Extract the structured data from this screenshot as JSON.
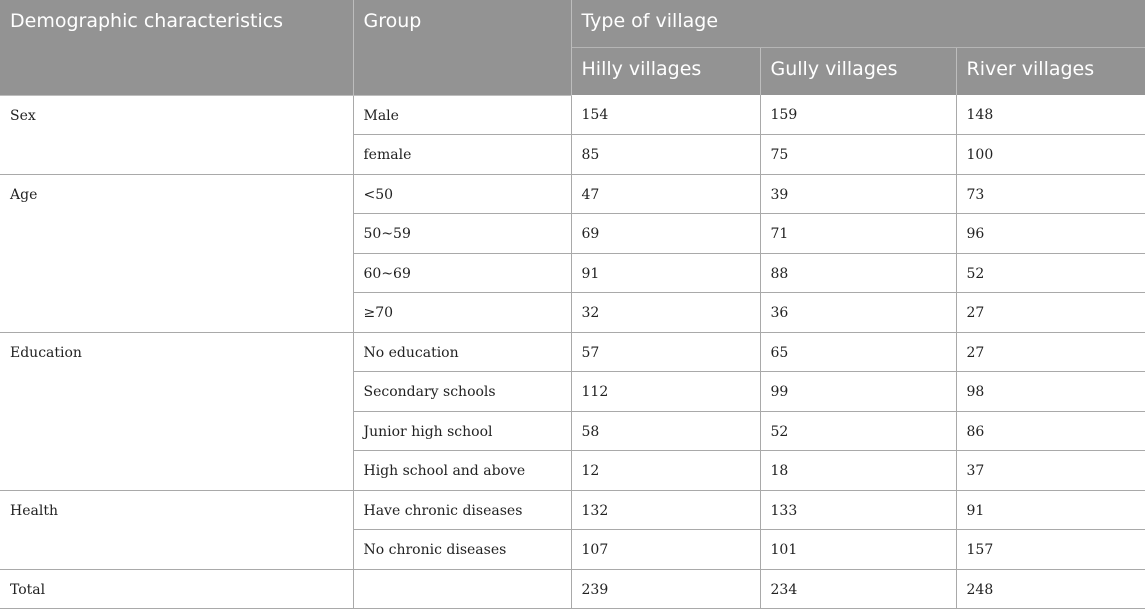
{
  "header": {
    "col1": "Demographic characteristics",
    "col2": "Group",
    "span": "Type of village",
    "villages": [
      "Hilly villages",
      "Gully villages",
      "River villages"
    ]
  },
  "rows": [
    {
      "category": "Sex",
      "group": "Male",
      "values": [
        "154",
        "159",
        "148"
      ]
    },
    {
      "category": "",
      "group": "female",
      "values": [
        "85",
        "75",
        "100"
      ]
    },
    {
      "category": "Age",
      "group": "<50",
      "values": [
        "47",
        "39",
        "73"
      ]
    },
    {
      "category": "",
      "group": "50~59",
      "values": [
        "69",
        "71",
        "96"
      ]
    },
    {
      "category": "",
      "group": "60~69",
      "values": [
        "91",
        "88",
        "52"
      ]
    },
    {
      "category": "",
      "group": "≥70",
      "values": [
        "32",
        "36",
        "27"
      ]
    },
    {
      "category": "Education",
      "group": "No education",
      "values": [
        "57",
        "65",
        "27"
      ]
    },
    {
      "category": "",
      "group": "Secondary schools",
      "values": [
        "112",
        "99",
        "98"
      ]
    },
    {
      "category": "",
      "group": "Junior high school",
      "values": [
        "58",
        "52",
        "86"
      ]
    },
    {
      "category": "",
      "group": "High school and above",
      "values": [
        "12",
        "18",
        "37"
      ]
    },
    {
      "category": "Health",
      "group": "Have chronic diseases",
      "values": [
        "132",
        "133",
        "91"
      ]
    },
    {
      "category": "",
      "group": "No chronic diseases",
      "values": [
        "107",
        "101",
        "157"
      ]
    },
    {
      "category": "Total",
      "group": "",
      "values": [
        "239",
        "234",
        "248"
      ]
    }
  ]
}
